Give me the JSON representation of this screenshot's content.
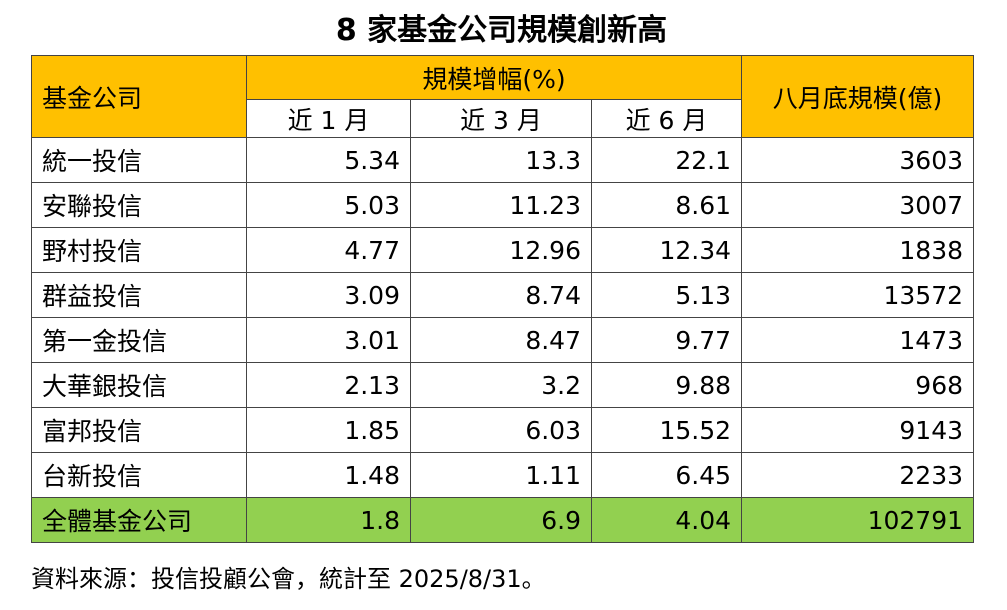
{
  "title": "8 家基金公司規模創新高",
  "table": {
    "header": {
      "company": "基金公司",
      "growth": "規模增幅(%)",
      "periods": [
        "近 1 月",
        "近 3 月",
        "近 6 月"
      ],
      "size": "八月底規模(億)"
    },
    "rows": [
      [
        "統一投信",
        5.34,
        13.3,
        22.1,
        3603
      ],
      [
        "安聯投信",
        5.03,
        11.23,
        8.61,
        3007
      ],
      [
        "野村投信",
        4.77,
        12.96,
        12.34,
        1838
      ],
      [
        "群益投信",
        3.09,
        8.74,
        5.13,
        13572
      ],
      [
        "第一金投信",
        3.01,
        8.47,
        9.77,
        1473
      ],
      [
        "大華銀投信",
        2.13,
        3.2,
        9.88,
        968
      ],
      [
        "富邦投信",
        1.85,
        6.03,
        15.52,
        9143
      ],
      [
        "台新投信",
        1.48,
        1.11,
        6.45,
        2233
      ]
    ],
    "total": [
      "全體基金公司",
      1.8,
      6.9,
      4.04,
      102791
    ]
  },
  "source": "資料來源：投信投顧公會，統計至 2025/8/31。"
}
